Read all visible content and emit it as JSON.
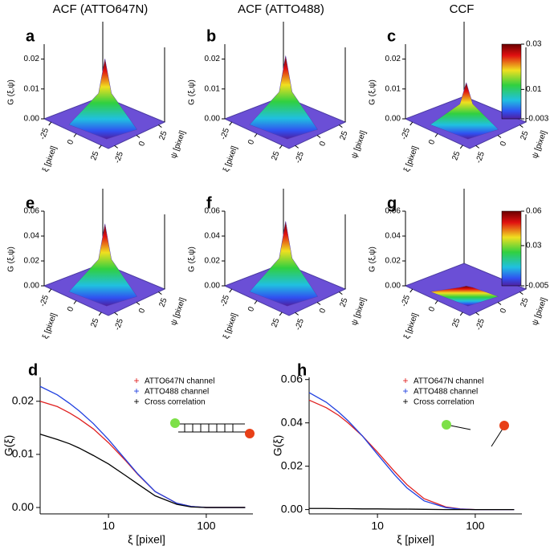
{
  "chart_data": [
    {
      "type": "surface3d",
      "title": "ACF (ATTO647N)",
      "label": "a",
      "zlabel": "G (ξ,ψ)",
      "xlabel": "ξ [pixel]",
      "ylabel": "ψ [pixel]",
      "xlim": [
        -32,
        32
      ],
      "ylim": [
        -32,
        32
      ],
      "xticks": [
        -25,
        0,
        25
      ],
      "yticks": [
        25,
        0,
        -25
      ],
      "zlim": [
        0,
        0.025
      ],
      "zticks": [
        {
          "value": 0,
          "label": "0.00"
        },
        {
          "value": 0.01,
          "label": "0.01"
        },
        {
          "value": 0.02,
          "label": "0.02"
        }
      ],
      "peak": 0.021
    },
    {
      "type": "surface3d",
      "title": "ACF (ATTO488)",
      "label": "b",
      "zlabel": "G (ξ,ψ)",
      "xlabel": "ξ [pixel]",
      "ylabel": "ψ [pixel]",
      "xlim": [
        -32,
        32
      ],
      "ylim": [
        -32,
        32
      ],
      "xticks": [
        -25,
        0,
        25
      ],
      "yticks": [
        25,
        0,
        -25
      ],
      "zlim": [
        0,
        0.025
      ],
      "zticks": [
        {
          "value": 0,
          "label": "0.00"
        },
        {
          "value": 0.01,
          "label": "0.01"
        },
        {
          "value": 0.02,
          "label": "0.02"
        }
      ],
      "peak": 0.022
    },
    {
      "type": "surface3d",
      "title": "CCF",
      "label": "c",
      "zlabel": "G (ξ,ψ)",
      "xlabel": "ξ [pixel]",
      "ylabel": "ψ [pixel]",
      "xlim": [
        -32,
        32
      ],
      "ylim": [
        -32,
        32
      ],
      "xticks": [
        -25,
        0,
        25
      ],
      "yticks": [
        25,
        0,
        -25
      ],
      "zlim": [
        0,
        0.025
      ],
      "zticks": [
        {
          "value": 0,
          "label": "0.00"
        },
        {
          "value": 0.01,
          "label": "0.01"
        },
        {
          "value": 0.02,
          "label": "0.02"
        }
      ],
      "peak": 0.013
    },
    {
      "type": "colorbar",
      "zlim": [
        -0.003,
        0.03
      ],
      "ticks": [
        0.03,
        0.01,
        -0.003
      ]
    },
    {
      "type": "surface3d",
      "label": "e",
      "zlabel": "G (ξ,ψ)",
      "xlabel": "ξ [pixel]",
      "ylabel": "ψ [pixel]",
      "xlim": [
        -32,
        32
      ],
      "ylim": [
        -32,
        32
      ],
      "xticks": [
        -25,
        0,
        25
      ],
      "yticks": [
        25,
        0,
        -25
      ],
      "zlim": [
        0,
        0.06
      ],
      "zticks": [
        {
          "value": 0,
          "label": "0.00"
        },
        {
          "value": 0.02,
          "label": "0.02"
        },
        {
          "value": 0.04,
          "label": "0.04"
        },
        {
          "value": 0.06,
          "label": "0.06"
        }
      ],
      "peak": 0.052
    },
    {
      "type": "surface3d",
      "label": "f",
      "zlabel": "G (ξ,ψ)",
      "xlabel": "ξ [pixel]",
      "ylabel": "ψ [pixel]",
      "xlim": [
        -32,
        32
      ],
      "ylim": [
        -32,
        32
      ],
      "xticks": [
        -25,
        0,
        25
      ],
      "yticks": [
        25,
        0,
        -25
      ],
      "zlim": [
        0,
        0.06
      ],
      "zticks": [
        {
          "value": 0,
          "label": "0.00"
        },
        {
          "value": 0.02,
          "label": "0.02"
        },
        {
          "value": 0.04,
          "label": "0.04"
        },
        {
          "value": 0.06,
          "label": "0.06"
        }
      ],
      "peak": 0.054
    },
    {
      "type": "surface3d",
      "label": "g",
      "zlabel": "G (ξ,ψ)",
      "xlabel": "ξ [pixel]",
      "ylabel": "ψ [pixel]",
      "xlim": [
        -32,
        32
      ],
      "ylim": [
        -32,
        32
      ],
      "xticks": [
        -25,
        0,
        25
      ],
      "yticks": [
        25,
        0,
        -25
      ],
      "zlim": [
        0,
        0.06
      ],
      "zticks": [
        {
          "value": 0,
          "label": "0.00"
        },
        {
          "value": 0.02,
          "label": "0.02"
        },
        {
          "value": 0.04,
          "label": "0.04"
        },
        {
          "value": 0.06,
          "label": "0.06"
        }
      ],
      "peak": 0.002
    },
    {
      "type": "colorbar",
      "zlim": [
        -0.005,
        0.06
      ],
      "ticks": [
        0.06,
        0.03,
        -0.005
      ]
    },
    {
      "type": "line",
      "label": "d",
      "xlabel": "ξ [pixel]",
      "ylabel": "G(ξ)",
      "xscale": "log",
      "xlim": [
        2,
        300
      ],
      "xticks": [
        10,
        100
      ],
      "ylim": [
        -0.0012,
        0.0245
      ],
      "yticks": [
        {
          "value": 0,
          "label": "0.00"
        },
        {
          "value": 0.01,
          "label": "0.01"
        },
        {
          "value": 0.02,
          "label": "0.02"
        }
      ],
      "x": [
        2,
        3,
        4,
        5,
        7,
        10,
        15,
        20,
        30,
        50,
        70,
        100,
        150,
        200,
        250
      ],
      "series": [
        {
          "name": "ATTO647N channel",
          "color": "#e02020",
          "values": [
            0.02,
            0.019,
            0.0178,
            0.0167,
            0.0148,
            0.0122,
            0.0088,
            0.0062,
            0.003,
            0.0008,
            0.0002,
            0,
            0,
            0,
            0
          ]
        },
        {
          "name": "ATTO488 channel",
          "color": "#2040e0",
          "values": [
            0.0228,
            0.0212,
            0.0196,
            0.0182,
            0.0158,
            0.0128,
            0.009,
            0.0063,
            0.003,
            0.0008,
            0.0002,
            0,
            0,
            0,
            0
          ]
        },
        {
          "name": "Cross correlation",
          "color": "#000000",
          "values": [
            0.0138,
            0.0128,
            0.012,
            0.0112,
            0.0098,
            0.0082,
            0.006,
            0.0044,
            0.0022,
            0.0006,
            0.0001,
            0,
            0,
            0,
            0
          ]
        }
      ]
    },
    {
      "type": "line",
      "label": "h",
      "xlabel": "ξ [pixel]",
      "ylabel": "G(ξ)",
      "xscale": "log",
      "xlim": [
        2,
        300
      ],
      "xticks": [
        10,
        100
      ],
      "ylim": [
        -0.002,
        0.061
      ],
      "yticks": [
        {
          "value": 0,
          "label": "0.00"
        },
        {
          "value": 0.02,
          "label": "0.02"
        },
        {
          "value": 0.04,
          "label": "0.04"
        },
        {
          "value": 0.06,
          "label": "0.06"
        }
      ],
      "x": [
        2,
        3,
        4,
        5,
        7,
        10,
        15,
        20,
        30,
        50,
        70,
        100,
        150,
        200,
        250
      ],
      "series": [
        {
          "name": "ATTO647N channel",
          "color": "#e02020",
          "values": [
            0.0505,
            0.047,
            0.0435,
            0.04,
            0.034,
            0.0265,
            0.0175,
            0.0115,
            0.005,
            0.0012,
            0.0003,
            0,
            0,
            0,
            0
          ]
        },
        {
          "name": "ATTO488 channel",
          "color": "#2040e0",
          "values": [
            0.054,
            0.0495,
            0.045,
            0.041,
            0.034,
            0.0255,
            0.016,
            0.01,
            0.004,
            0.0009,
            0.0002,
            0,
            0,
            0,
            0
          ]
        },
        {
          "name": "Cross correlation",
          "color": "#000000",
          "values": [
            0.0005,
            0.0005,
            0.0004,
            0.0004,
            0.0003,
            0.0003,
            0.0002,
            0.0002,
            0.0001,
            0,
            0,
            0,
            0,
            0,
            0
          ]
        }
      ]
    }
  ]
}
